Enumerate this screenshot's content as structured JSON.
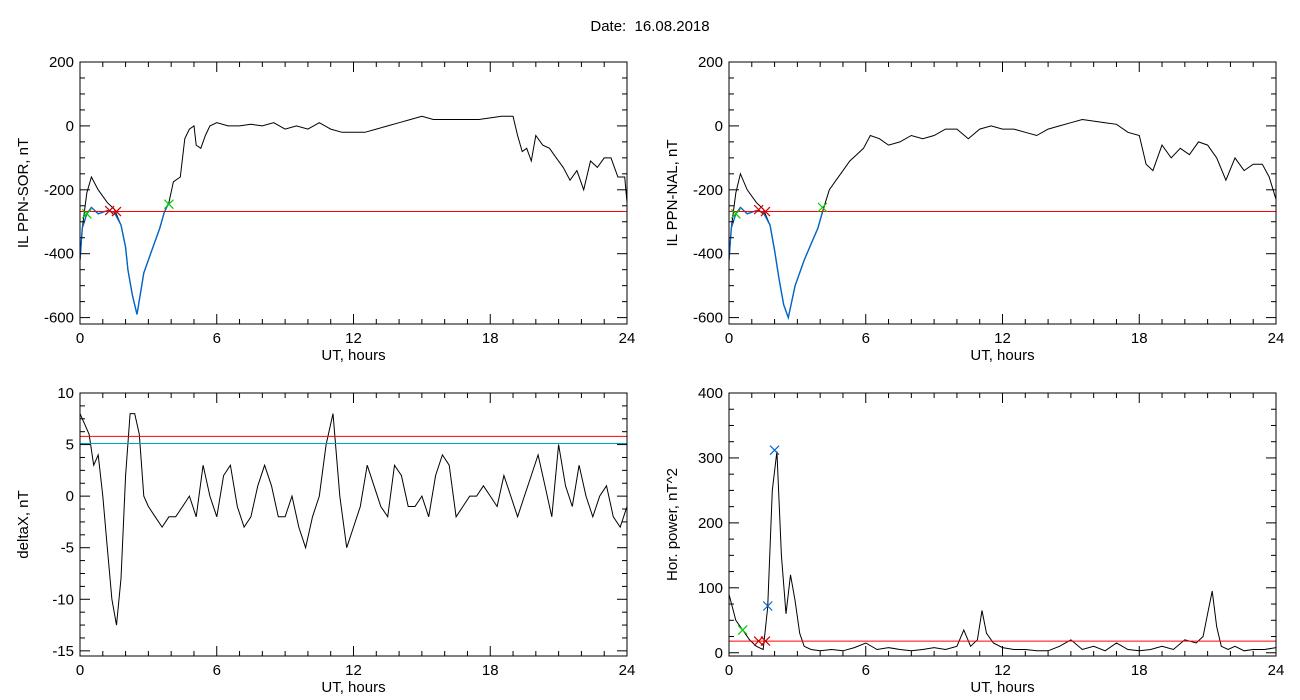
{
  "page_title": "Date:  16.08.2018",
  "colors": {
    "axes": "#000000",
    "trace": "#000000",
    "event": "#0066cc",
    "threshold": "#ff0000",
    "threshold2": "#00a0c8",
    "marker_green": "#00cc00",
    "marker_red": "#cc0000",
    "marker_blue": "#0066cc"
  },
  "chart_data": [
    {
      "type": "line",
      "title": "",
      "xlabel": "UT, hours",
      "ylabel": "IL PPN-SOR, nT",
      "xlim": [
        0,
        24
      ],
      "ylim": [
        -620,
        200
      ],
      "xticks": [
        0,
        6,
        12,
        18,
        24
      ],
      "xtick_labels": [
        "0",
        "6",
        "12",
        "18",
        "24"
      ],
      "yticks": [
        -600,
        -400,
        -200,
        0,
        200
      ],
      "ytick_labels": [
        "-600",
        "-400",
        "-200",
        "0",
        "200"
      ],
      "series": [
        {
          "role": "trace",
          "x": [
            0,
            0.1,
            0.3,
            0.5,
            0.8,
            1.2,
            1.5,
            1.8,
            2.0,
            2.1,
            2.3,
            2.5,
            2.8,
            3.2,
            3.5,
            3.7,
            3.9,
            4.1,
            4.4,
            4.6,
            4.8,
            5.0,
            5.1,
            5.3,
            5.5,
            5.7,
            6.0,
            6.5,
            7.0,
            7.5,
            8.0,
            8.5,
            9.0,
            9.5,
            10.0,
            10.5,
            11.0,
            11.5,
            12.0,
            12.5,
            13.0,
            13.5,
            14.0,
            14.5,
            15.0,
            15.5,
            16.0,
            16.5,
            17.0,
            17.5,
            18.0,
            18.5,
            19.0,
            19.2,
            19.4,
            19.6,
            19.8,
            20.0,
            20.3,
            20.6,
            20.9,
            21.2,
            21.5,
            21.8,
            22.1,
            22.4,
            22.7,
            23.0,
            23.3,
            23.6,
            23.9,
            24.0
          ],
          "y": [
            -420,
            -320,
            -210,
            -160,
            -200,
            -240,
            -260,
            -310,
            -380,
            -450,
            -530,
            -590,
            -460,
            -380,
            -320,
            -270,
            -240,
            -175,
            -160,
            -40,
            -10,
            0,
            -60,
            -70,
            -30,
            0,
            10,
            0,
            0,
            5,
            0,
            10,
            -10,
            0,
            -10,
            10,
            -10,
            -20,
            -20,
            -20,
            -10,
            0,
            10,
            20,
            30,
            20,
            20,
            20,
            20,
            20,
            25,
            30,
            30,
            -30,
            -80,
            -70,
            -110,
            -30,
            -60,
            -70,
            -100,
            -130,
            -170,
            -140,
            -200,
            -110,
            -130,
            -100,
            -100,
            -160,
            -160,
            -240
          ]
        },
        {
          "role": "event",
          "x": [
            0,
            0.1,
            0.3,
            0.5,
            0.8,
            1.2,
            1.5,
            1.8,
            2.0,
            2.1,
            2.3,
            2.5,
            2.8,
            3.2,
            3.5,
            3.7,
            3.9
          ],
          "y": [
            -420,
            -320,
            -275,
            -255,
            -275,
            -265,
            -270,
            -310,
            -380,
            -450,
            -530,
            -590,
            -460,
            -380,
            -320,
            -270,
            -240
          ]
        },
        {
          "role": "threshold",
          "value": -268
        }
      ],
      "markers": [
        {
          "x": 0.3,
          "y": -275,
          "color": "green"
        },
        {
          "x": 1.3,
          "y": -265,
          "color": "red"
        },
        {
          "x": 1.6,
          "y": -268,
          "color": "red"
        },
        {
          "x": 3.9,
          "y": -245,
          "color": "green"
        }
      ]
    },
    {
      "type": "line",
      "title": "",
      "xlabel": "UT, hours",
      "ylabel": "IL PPN-NAL, nT",
      "xlim": [
        0,
        24
      ],
      "ylim": [
        -620,
        200
      ],
      "xticks": [
        0,
        6,
        12,
        18,
        24
      ],
      "xtick_labels": [
        "0",
        "6",
        "12",
        "18",
        "24"
      ],
      "yticks": [
        -600,
        -400,
        -200,
        0,
        200
      ],
      "ytick_labels": [
        "-600",
        "-400",
        "-200",
        "0",
        "200"
      ],
      "series": [
        {
          "role": "trace",
          "x": [
            0,
            0.1,
            0.3,
            0.5,
            0.8,
            1.2,
            1.5,
            1.8,
            2.0,
            2.2,
            2.4,
            2.6,
            2.9,
            3.3,
            3.6,
            3.9,
            4.1,
            4.4,
            4.7,
            5.0,
            5.3,
            5.6,
            5.9,
            6.2,
            6.6,
            7.0,
            7.5,
            8.0,
            8.5,
            9.0,
            9.5,
            10.0,
            10.5,
            11.0,
            11.5,
            12.0,
            12.5,
            13.0,
            13.5,
            14.0,
            14.5,
            15.0,
            15.5,
            16.0,
            16.5,
            17.0,
            17.5,
            18.0,
            18.3,
            18.6,
            19.0,
            19.4,
            19.8,
            20.2,
            20.6,
            21.0,
            21.4,
            21.8,
            22.2,
            22.6,
            23.0,
            23.4,
            23.7,
            24.0
          ],
          "y": [
            -420,
            -320,
            -210,
            -150,
            -200,
            -240,
            -260,
            -310,
            -390,
            -480,
            -560,
            -600,
            -500,
            -420,
            -370,
            -320,
            -270,
            -200,
            -170,
            -140,
            -110,
            -90,
            -70,
            -30,
            -40,
            -60,
            -50,
            -30,
            -40,
            -30,
            -10,
            -10,
            -40,
            -10,
            0,
            -10,
            -10,
            -20,
            -30,
            -10,
            0,
            10,
            20,
            15,
            10,
            5,
            -20,
            -30,
            -120,
            -140,
            -60,
            -100,
            -70,
            -90,
            -50,
            -60,
            -100,
            -170,
            -100,
            -140,
            -120,
            -120,
            -160,
            -230
          ]
        },
        {
          "role": "event",
          "x": [
            0,
            0.1,
            0.3,
            0.5,
            0.8,
            1.2,
            1.5,
            1.8,
            2.0,
            2.2,
            2.4,
            2.6,
            2.9,
            3.3,
            3.6,
            3.9,
            4.1
          ],
          "y": [
            -420,
            -320,
            -275,
            -255,
            -275,
            -265,
            -270,
            -310,
            -390,
            -480,
            -560,
            -600,
            -500,
            -420,
            -370,
            -320,
            -270
          ]
        },
        {
          "role": "threshold",
          "value": -268
        }
      ],
      "markers": [
        {
          "x": 0.3,
          "y": -275,
          "color": "green"
        },
        {
          "x": 1.3,
          "y": -262,
          "color": "red"
        },
        {
          "x": 1.6,
          "y": -268,
          "color": "red"
        },
        {
          "x": 4.1,
          "y": -255,
          "color": "green"
        }
      ]
    },
    {
      "type": "line",
      "title": "",
      "xlabel": "UT, hours",
      "ylabel": "deltaX, nT",
      "xlim": [
        0,
        24
      ],
      "ylim": [
        -15.5,
        10
      ],
      "xticks": [
        0,
        6,
        12,
        18,
        24
      ],
      "xtick_labels": [
        "0",
        "6",
        "12",
        "18",
        "24"
      ],
      "yticks": [
        -15,
        -10,
        -5,
        0,
        5,
        10
      ],
      "ytick_labels": [
        "-15",
        "-10",
        "-5",
        "0",
        "5",
        "10"
      ],
      "series": [
        {
          "role": "trace",
          "x": [
            0,
            0.2,
            0.4,
            0.6,
            0.8,
            1.0,
            1.2,
            1.4,
            1.6,
            1.8,
            2.0,
            2.2,
            2.4,
            2.6,
            2.8,
            3.0,
            3.3,
            3.6,
            3.9,
            4.2,
            4.5,
            4.8,
            5.1,
            5.4,
            5.7,
            6.0,
            6.3,
            6.6,
            6.9,
            7.2,
            7.5,
            7.8,
            8.1,
            8.4,
            8.7,
            9.0,
            9.3,
            9.6,
            9.9,
            10.2,
            10.5,
            10.8,
            11.1,
            11.4,
            11.7,
            12.0,
            12.3,
            12.6,
            12.9,
            13.2,
            13.5,
            13.8,
            14.1,
            14.4,
            14.7,
            15.0,
            15.3,
            15.6,
            15.9,
            16.2,
            16.5,
            16.8,
            17.1,
            17.4,
            17.7,
            18.0,
            18.3,
            18.6,
            18.9,
            19.2,
            19.5,
            19.8,
            20.1,
            20.4,
            20.7,
            21.0,
            21.3,
            21.6,
            21.9,
            22.2,
            22.5,
            22.8,
            23.1,
            23.4,
            23.7,
            24.0
          ],
          "y": [
            8,
            7,
            6,
            3,
            4,
            0,
            -5,
            -10,
            -12.5,
            -8,
            2,
            8,
            8,
            6,
            0,
            -1,
            -2,
            -3,
            -2,
            -2,
            -1,
            0,
            -2,
            3,
            0,
            -2,
            2,
            3,
            -1,
            -3,
            -2,
            1,
            3,
            1,
            -2,
            -2,
            0,
            -3,
            -5,
            -2,
            0,
            5,
            8,
            0,
            -5,
            -3,
            -1,
            3,
            1,
            -1,
            -2,
            3,
            2,
            -1,
            -1,
            0,
            -2,
            2,
            4,
            3,
            -2,
            -1,
            0,
            0,
            1,
            0,
            -1,
            2,
            0,
            -2,
            0,
            2,
            4,
            1,
            -2,
            5,
            1,
            -1,
            3,
            0,
            -2,
            0,
            1,
            -2,
            -3,
            -1
          ]
        },
        {
          "role": "threshold",
          "value": 5.8
        },
        {
          "role": "threshold2",
          "value": 5.1
        }
      ],
      "markers": []
    },
    {
      "type": "line",
      "title": "",
      "xlabel": "UT, hours",
      "ylabel": "Hor. power, nT^2",
      "xlim": [
        0,
        24
      ],
      "ylim": [
        -5,
        400
      ],
      "xticks": [
        0,
        6,
        12,
        18,
        24
      ],
      "xtick_labels": [
        "0",
        "6",
        "12",
        "18",
        "24"
      ],
      "yticks": [
        0,
        100,
        200,
        300,
        400
      ],
      "ytick_labels": [
        "0",
        "100",
        "200",
        "300",
        "400"
      ],
      "series": [
        {
          "role": "trace",
          "x": [
            0,
            0.3,
            0.6,
            0.9,
            1.2,
            1.5,
            1.7,
            1.9,
            2.1,
            2.3,
            2.5,
            2.7,
            2.9,
            3.1,
            3.3,
            3.6,
            4.0,
            4.5,
            5.0,
            5.5,
            6.0,
            6.5,
            7.0,
            7.5,
            8.0,
            8.5,
            9.0,
            9.5,
            10.0,
            10.3,
            10.6,
            10.9,
            11.1,
            11.3,
            11.6,
            12.0,
            12.5,
            13.0,
            13.5,
            14.0,
            14.5,
            15.0,
            15.5,
            16.0,
            16.5,
            17.0,
            17.5,
            18.0,
            18.5,
            19.0,
            19.5,
            20.0,
            20.5,
            20.8,
            21.0,
            21.2,
            21.4,
            21.6,
            21.9,
            22.2,
            22.6,
            23.0,
            23.5,
            24.0
          ],
          "y": [
            90,
            50,
            35,
            20,
            10,
            5,
            70,
            250,
            310,
            150,
            60,
            120,
            80,
            30,
            10,
            5,
            3,
            5,
            3,
            8,
            15,
            5,
            8,
            5,
            3,
            5,
            8,
            5,
            10,
            35,
            10,
            20,
            65,
            30,
            15,
            8,
            5,
            5,
            3,
            3,
            10,
            20,
            5,
            10,
            3,
            15,
            5,
            3,
            5,
            10,
            5,
            20,
            15,
            25,
            60,
            95,
            40,
            10,
            5,
            10,
            3,
            5,
            5,
            8
          ]
        },
        {
          "role": "threshold",
          "value": 18
        }
      ],
      "markers": [
        {
          "x": 0.6,
          "y": 35,
          "color": "green"
        },
        {
          "x": 1.3,
          "y": 18,
          "color": "red"
        },
        {
          "x": 1.6,
          "y": 18,
          "color": "red"
        },
        {
          "x": 1.7,
          "y": 72,
          "color": "blue"
        },
        {
          "x": 2.0,
          "y": 312,
          "color": "blue"
        }
      ]
    }
  ]
}
